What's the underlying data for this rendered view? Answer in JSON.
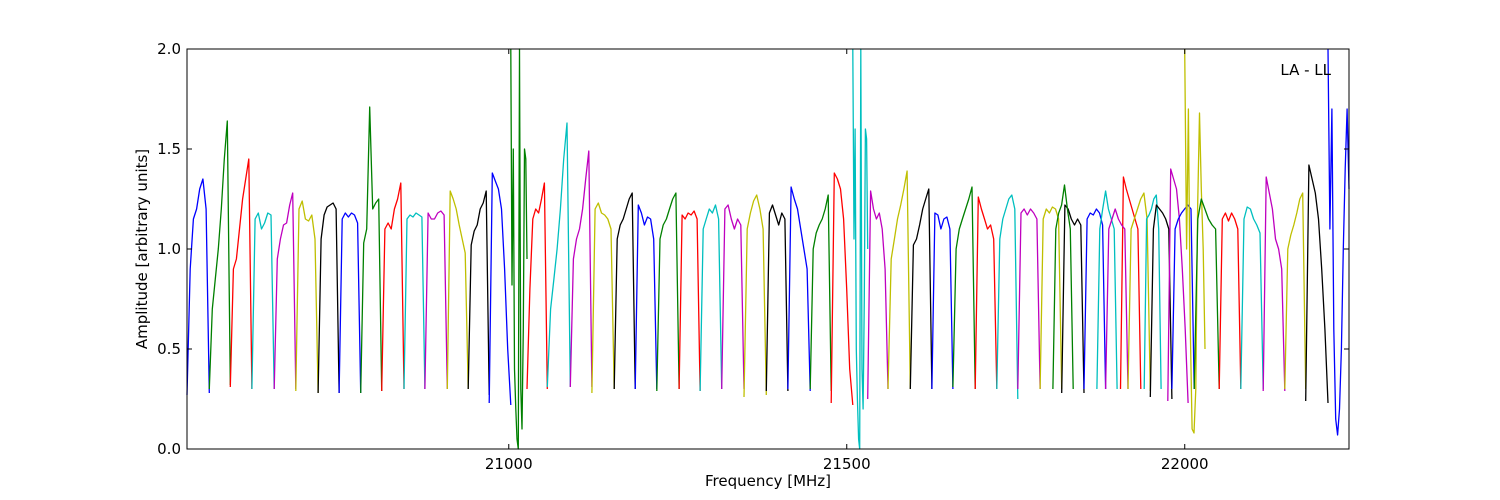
{
  "chart_data": {
    "type": "line",
    "title": "",
    "annotation": "LA - LL",
    "xlabel": "Frequency [MHz]",
    "ylabel": "Amplitude [arbitrary units]",
    "xlim": [
      20524,
      22243
    ],
    "ylim": [
      0.0,
      2.0
    ],
    "xticks": [
      21000,
      21500,
      22000
    ],
    "xtick_labels": [
      "21000",
      "21500",
      "22000"
    ],
    "yticks": [
      0.0,
      0.5,
      1.0,
      1.5,
      2.0
    ],
    "ytick_labels": [
      "0.0",
      "0.5",
      "1.0",
      "1.5",
      "2.0"
    ],
    "grid": false,
    "colors": {
      "b": "#0000ff",
      "g": "#008000",
      "r": "#ff0000",
      "c": "#00bfbf",
      "m": "#bf00bf",
      "y": "#bfbf00",
      "k": "#000000"
    },
    "segments": [
      {
        "c": "b",
        "f0": 20524,
        "f1": 20557,
        "y": [
          0.27,
          0.9,
          1.15,
          1.2,
          1.3,
          1.35,
          1.2,
          0.28
        ]
      },
      {
        "c": "g",
        "f0": 20557,
        "f1": 20588,
        "y": [
          0.3,
          0.7,
          0.85,
          1.0,
          1.2,
          1.45,
          1.64,
          0.32
        ]
      },
      {
        "c": "r",
        "f0": 20588,
        "f1": 20620,
        "y": [
          0.31,
          0.9,
          0.95,
          1.1,
          1.25,
          1.35,
          1.45,
          0.3
        ]
      },
      {
        "c": "c",
        "f0": 20620,
        "f1": 20653,
        "y": [
          0.3,
          1.15,
          1.18,
          1.1,
          1.13,
          1.18,
          1.17,
          0.3
        ]
      },
      {
        "c": "m",
        "f0": 20653,
        "f1": 20685,
        "y": [
          0.3,
          0.95,
          1.05,
          1.12,
          1.13,
          1.22,
          1.28,
          0.3
        ]
      },
      {
        "c": "y",
        "f0": 20685,
        "f1": 20718,
        "y": [
          0.29,
          1.2,
          1.24,
          1.15,
          1.14,
          1.17,
          1.05,
          0.28
        ]
      },
      {
        "c": "k",
        "f0": 20718,
        "f1": 20749,
        "y": [
          0.28,
          1.05,
          1.17,
          1.21,
          1.22,
          1.23,
          1.2,
          0.28
        ]
      },
      {
        "c": "b",
        "f0": 20749,
        "f1": 20781,
        "y": [
          0.28,
          1.15,
          1.18,
          1.16,
          1.18,
          1.17,
          1.13,
          0.28
        ]
      },
      {
        "c": "g",
        "f0": 20781,
        "f1": 20812,
        "y": [
          0.28,
          1.03,
          1.1,
          1.71,
          1.2,
          1.23,
          1.25,
          0.29
        ]
      },
      {
        "c": "r",
        "f0": 20812,
        "f1": 20845,
        "y": [
          0.29,
          1.1,
          1.13,
          1.1,
          1.2,
          1.25,
          1.33,
          0.3
        ]
      },
      {
        "c": "c",
        "f0": 20845,
        "f1": 20876,
        "y": [
          0.3,
          1.15,
          1.17,
          1.16,
          1.18,
          1.17,
          1.16,
          0.3
        ]
      },
      {
        "c": "m",
        "f0": 20876,
        "f1": 20909,
        "y": [
          0.3,
          1.18,
          1.15,
          1.15,
          1.18,
          1.19,
          1.17,
          0.3
        ]
      },
      {
        "c": "y",
        "f0": 20909,
        "f1": 20940,
        "y": [
          0.3,
          1.29,
          1.25,
          1.2,
          1.12,
          1.05,
          0.98,
          0.3
        ]
      },
      {
        "c": "k",
        "f0": 20940,
        "f1": 20971,
        "y": [
          0.3,
          1.02,
          1.09,
          1.12,
          1.2,
          1.23,
          1.29,
          0.27
        ]
      },
      {
        "c": "b",
        "f0": 20971,
        "f1": 21003,
        "y": [
          0.23,
          1.38,
          1.34,
          1.3,
          1.2,
          0.9,
          0.5,
          0.22
        ]
      },
      {
        "c": "g",
        "f0": 21003,
        "f1": 21027,
        "y": [
          2.0,
          0.82,
          1.5,
          0.4,
          0.2,
          0.05,
          0.0,
          2.0,
          0.3,
          0.1,
          0.6,
          1.5,
          1.45,
          0.95
        ]
      },
      {
        "c": "r",
        "f0": 21027,
        "f1": 21057,
        "y": [
          0.3,
          0.8,
          1.15,
          1.2,
          1.18,
          1.25,
          1.33,
          0.3
        ]
      },
      {
        "c": "c",
        "f0": 21057,
        "f1": 21091,
        "y": [
          0.31,
          0.7,
          0.85,
          1.0,
          1.2,
          1.45,
          1.63,
          0.31
        ]
      },
      {
        "c": "m",
        "f0": 21091,
        "f1": 21123,
        "y": [
          0.31,
          0.95,
          1.05,
          1.1,
          1.2,
          1.35,
          1.49,
          0.31
        ]
      },
      {
        "c": "y",
        "f0": 21123,
        "f1": 21156,
        "y": [
          0.28,
          1.2,
          1.23,
          1.18,
          1.17,
          1.15,
          1.1,
          0.3
        ]
      },
      {
        "c": "k",
        "f0": 21156,
        "f1": 21187,
        "y": [
          0.3,
          1.05,
          1.12,
          1.15,
          1.2,
          1.25,
          1.28,
          0.3
        ]
      },
      {
        "c": "b",
        "f0": 21187,
        "f1": 21219,
        "y": [
          0.3,
          1.22,
          1.18,
          1.12,
          1.16,
          1.15,
          1.05,
          0.3
        ]
      },
      {
        "c": "g",
        "f0": 21219,
        "f1": 21252,
        "y": [
          0.29,
          1.05,
          1.12,
          1.15,
          1.2,
          1.25,
          1.28,
          0.3
        ]
      },
      {
        "c": "r",
        "f0": 21252,
        "f1": 21283,
        "y": [
          0.3,
          1.17,
          1.15,
          1.18,
          1.17,
          1.19,
          1.15,
          0.29
        ]
      },
      {
        "c": "c",
        "f0": 21283,
        "f1": 21315,
        "y": [
          0.29,
          1.1,
          1.15,
          1.2,
          1.18,
          1.22,
          1.15,
          0.3
        ]
      },
      {
        "c": "m",
        "f0": 21315,
        "f1": 21348,
        "y": [
          0.3,
          1.2,
          1.22,
          1.15,
          1.1,
          1.15,
          1.12,
          0.3
        ]
      },
      {
        "c": "y",
        "f0": 21348,
        "f1": 21381,
        "y": [
          0.26,
          1.1,
          1.18,
          1.24,
          1.27,
          1.2,
          1.1,
          0.27
        ]
      },
      {
        "c": "k",
        "f0": 21381,
        "f1": 21413,
        "y": [
          0.29,
          1.18,
          1.22,
          1.17,
          1.12,
          1.18,
          1.15,
          0.29
        ]
      },
      {
        "c": "b",
        "f0": 21413,
        "f1": 21446,
        "y": [
          0.3,
          1.31,
          1.25,
          1.2,
          1.1,
          1.0,
          0.9,
          0.29
        ]
      },
      {
        "c": "g",
        "f0": 21446,
        "f1": 21477,
        "y": [
          0.3,
          1.0,
          1.08,
          1.12,
          1.15,
          1.2,
          1.27,
          0.29
        ]
      },
      {
        "c": "r",
        "f0": 21477,
        "f1": 21509,
        "y": [
          0.23,
          1.38,
          1.35,
          1.3,
          1.15,
          0.8,
          0.4,
          0.22
        ]
      },
      {
        "c": "c",
        "f0": 21509,
        "f1": 21531,
        "y": [
          2.0,
          1.05,
          1.6,
          0.5,
          0.25,
          0.05,
          0.0,
          2.0,
          0.4,
          0.2,
          0.75,
          1.6,
          1.55,
          1.0
        ]
      },
      {
        "c": "m",
        "f0": 21531,
        "f1": 21561,
        "y": [
          0.25,
          1.29,
          1.2,
          1.15,
          1.18,
          1.1,
          0.9,
          0.3
        ]
      },
      {
        "c": "y",
        "f0": 21561,
        "f1": 21594,
        "y": [
          0.3,
          0.95,
          1.05,
          1.15,
          1.22,
          1.3,
          1.39,
          0.3
        ]
      },
      {
        "c": "k",
        "f0": 21594,
        "f1": 21626,
        "y": [
          0.3,
          1.02,
          1.05,
          1.12,
          1.2,
          1.25,
          1.3,
          0.3
        ]
      },
      {
        "c": "b",
        "f0": 21626,
        "f1": 21657,
        "y": [
          0.3,
          1.18,
          1.17,
          1.1,
          1.15,
          1.16,
          1.1,
          0.3
        ]
      },
      {
        "c": "g",
        "f0": 21657,
        "f1": 21690,
        "y": [
          0.31,
          1.0,
          1.1,
          1.15,
          1.2,
          1.25,
          1.31,
          0.3
        ]
      },
      {
        "c": "r",
        "f0": 21690,
        "f1": 21722,
        "y": [
          0.3,
          1.26,
          1.2,
          1.15,
          1.1,
          1.12,
          1.05,
          0.3
        ]
      },
      {
        "c": "c",
        "f0": 21722,
        "f1": 21753,
        "y": [
          0.3,
          1.05,
          1.15,
          1.2,
          1.25,
          1.27,
          1.2,
          0.25
        ]
      },
      {
        "c": "m",
        "f0": 21753,
        "f1": 21786,
        "y": [
          0.3,
          1.18,
          1.2,
          1.17,
          1.2,
          1.18,
          1.15,
          0.3
        ]
      },
      {
        "c": "y",
        "f0": 21786,
        "f1": 21818,
        "y": [
          0.3,
          1.15,
          1.2,
          1.18,
          1.21,
          1.2,
          1.15,
          0.3
        ]
      },
      {
        "c": "k",
        "f0": 21818,
        "f1": 21851,
        "y": [
          0.28,
          1.22,
          1.2,
          1.15,
          1.12,
          1.15,
          1.12,
          0.28
        ]
      },
      {
        "c": "g",
        "f0": 21805,
        "f1": 21835,
        "y": [
          0.3,
          1.1,
          1.18,
          1.22,
          1.32,
          1.2,
          1.1,
          0.3
        ]
      },
      {
        "c": "b",
        "f0": 21851,
        "f1": 21883,
        "y": [
          0.3,
          1.15,
          1.18,
          1.17,
          1.2,
          1.18,
          1.12,
          0.3
        ]
      },
      {
        "c": "c",
        "f0": 21870,
        "f1": 21900,
        "y": [
          0.3,
          1.1,
          1.2,
          1.29,
          1.2,
          1.15,
          1.1,
          0.3
        ]
      },
      {
        "c": "r",
        "f0": 21905,
        "f1": 21935,
        "y": [
          0.3,
          1.36,
          1.3,
          1.25,
          1.2,
          1.15,
          1.1,
          0.3
        ]
      },
      {
        "c": "m",
        "f0": 21883,
        "f1": 21916,
        "y": [
          0.3,
          1.1,
          1.15,
          1.2,
          1.15,
          1.12,
          1.1,
          0.3
        ]
      },
      {
        "c": "y",
        "f0": 21916,
        "f1": 21949,
        "y": [
          0.3,
          1.1,
          1.15,
          1.2,
          1.25,
          1.28,
          1.15,
          0.29
        ]
      },
      {
        "c": "c",
        "f0": 21940,
        "f1": 21965,
        "y": [
          0.3,
          1.15,
          1.17,
          1.2,
          1.25,
          1.27,
          1.1,
          0.3
        ]
      },
      {
        "c": "k",
        "f0": 21949,
        "f1": 21981,
        "y": [
          0.26,
          1.1,
          1.22,
          1.2,
          1.18,
          1.15,
          1.1,
          0.25
        ]
      },
      {
        "c": "m",
        "f0": 21975,
        "f1": 22005,
        "y": [
          0.24,
          1.4,
          1.35,
          1.3,
          1.15,
          0.9,
          0.6,
          0.23
        ]
      },
      {
        "c": "b",
        "f0": 21981,
        "f1": 22014,
        "y": [
          0.3,
          1.1,
          1.15,
          1.18,
          1.2,
          1.22,
          1.2,
          0.3
        ]
      },
      {
        "c": "y",
        "f0": 22000,
        "f1": 22030,
        "y": [
          2.0,
          1.0,
          1.7,
          0.6,
          0.1,
          0.08,
          0.3,
          1.2,
          1.68,
          1.3,
          1.0,
          0.5
        ]
      },
      {
        "c": "g",
        "f0": 22014,
        "f1": 22051,
        "y": [
          0.3,
          1.15,
          1.25,
          1.2,
          1.15,
          1.12,
          1.1,
          0.3
        ]
      },
      {
        "c": "r",
        "f0": 22051,
        "f1": 22083,
        "y": [
          0.3,
          1.15,
          1.18,
          1.14,
          1.18,
          1.15,
          1.1,
          0.3
        ]
      },
      {
        "c": "c",
        "f0": 22083,
        "f1": 22116,
        "y": [
          0.3,
          1.15,
          1.21,
          1.2,
          1.15,
          1.12,
          1.08,
          0.3
        ]
      },
      {
        "c": "m",
        "f0": 22116,
        "f1": 22148,
        "y": [
          0.29,
          1.36,
          1.28,
          1.2,
          1.05,
          1.0,
          0.9,
          0.29
        ]
      },
      {
        "c": "y",
        "f0": 22148,
        "f1": 22179,
        "y": [
          0.3,
          1.0,
          1.07,
          1.12,
          1.18,
          1.25,
          1.28,
          0.3
        ]
      },
      {
        "c": "k",
        "f0": 22179,
        "f1": 22212,
        "y": [
          0.24,
          1.42,
          1.35,
          1.28,
          1.15,
          0.9,
          0.6,
          0.23
        ]
      },
      {
        "c": "b",
        "f0": 22212,
        "f1": 22243,
        "y": [
          2.0,
          1.1,
          1.7,
          0.6,
          0.15,
          0.07,
          0.2,
          0.5,
          1.0,
          1.4,
          1.7,
          1.3
        ]
      }
    ]
  }
}
